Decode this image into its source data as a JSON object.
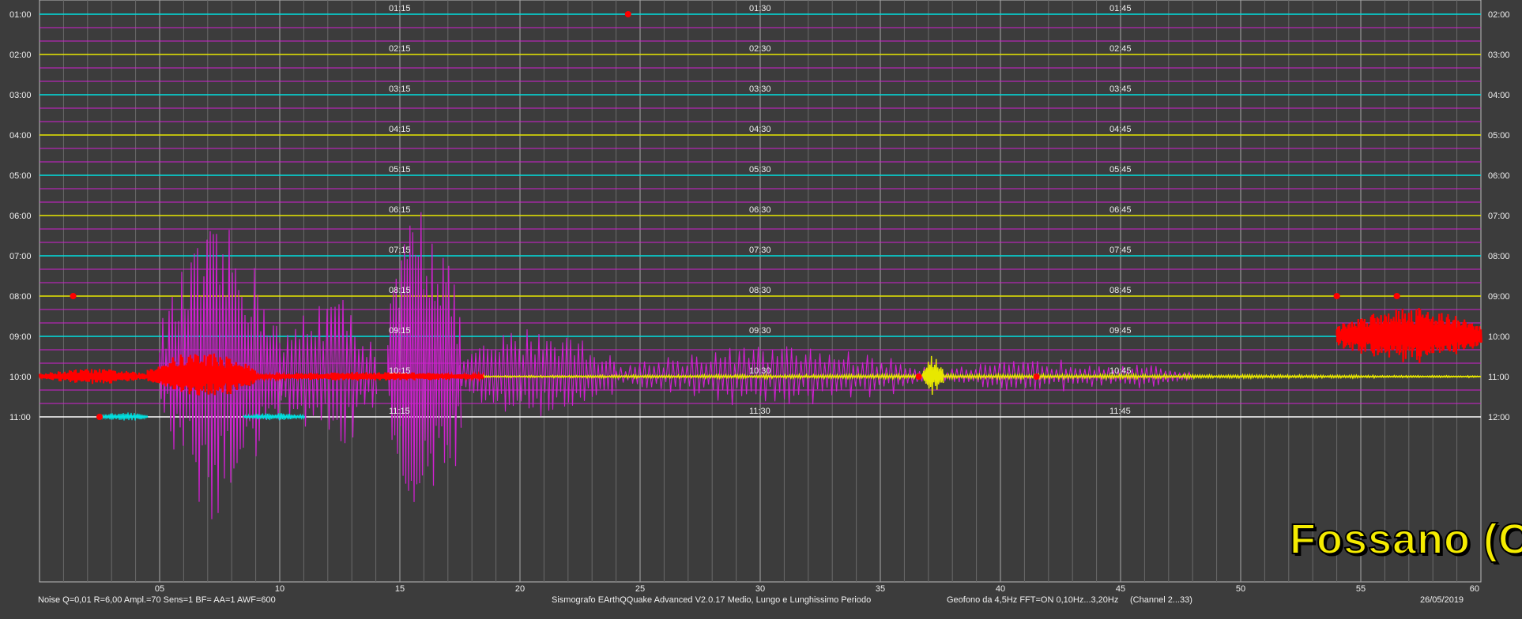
{
  "chart_data": {
    "type": "line",
    "title": "",
    "x_ticks": [
      "05",
      "10",
      "15",
      "20",
      "25",
      "30",
      "35",
      "40",
      "45",
      "50",
      "55",
      "60"
    ],
    "xlim": [
      0,
      60
    ],
    "rows": [
      {
        "left": "01:00",
        "right": "02:00",
        "mid": [
          "01:15",
          "01:30",
          "01:45"
        ],
        "color": "#00e0e0"
      },
      {
        "left": "02:00",
        "right": "03:00",
        "mid": [
          "02:15",
          "02:30",
          "02:45"
        ],
        "color": "#e8e800"
      },
      {
        "left": "03:00",
        "right": "04:00",
        "mid": [
          "03:15",
          "03:30",
          "03:45"
        ],
        "color": "#00e0e0"
      },
      {
        "left": "04:00",
        "right": "05:00",
        "mid": [
          "04:15",
          "04:30",
          "04:45"
        ],
        "color": "#e8e800"
      },
      {
        "left": "05:00",
        "right": "06:00",
        "mid": [
          "05:15",
          "05:30",
          "05:45"
        ],
        "color": "#00e0e0"
      },
      {
        "left": "06:00",
        "right": "07:00",
        "mid": [
          "06:15",
          "06:30",
          "06:45"
        ],
        "color": "#e8e800"
      },
      {
        "left": "07:00",
        "right": "08:00",
        "mid": [
          "07:15",
          "07:30",
          "07:45"
        ],
        "color": "#00e0e0"
      },
      {
        "left": "08:00",
        "right": "09:00",
        "mid": [
          "08:15",
          "08:30",
          "08:45"
        ],
        "color": "#e8e800"
      },
      {
        "left": "09:00",
        "right": "10:00",
        "mid": [
          "09:15",
          "09:30",
          "09:45"
        ],
        "color": "#00e0e0"
      },
      {
        "left": "10:00",
        "right": "11:00",
        "mid": [
          "10:15",
          "10:30",
          "10:45"
        ],
        "color": "#e8e800"
      },
      {
        "left": "11:00",
        "right": "12:00",
        "mid": [
          "11:15",
          "11:30",
          "11:45"
        ],
        "color": "#ffffff"
      }
    ],
    "colors": {
      "background": "#3c3c3c",
      "grid": "#8a8a8a",
      "magenta": "#d020d0",
      "event": "#ff0000"
    }
  },
  "footer": {
    "noise": "Noise Q=0,01 R=6,00 Ampl.=70 Sens=1 BF= AA=1 AWF=600",
    "software": "Sismografo  EArthQQuake Advanced V2.0.17  Medio, Lungo e Lunghissimo Periodo",
    "geofono": "Geofono da 4,5Hz FFT=ON 0,10Hz...3,20Hz",
    "channel": "(Channel 2...33)",
    "date": "26/05/2019"
  },
  "watermark": "Fossano (CN)"
}
